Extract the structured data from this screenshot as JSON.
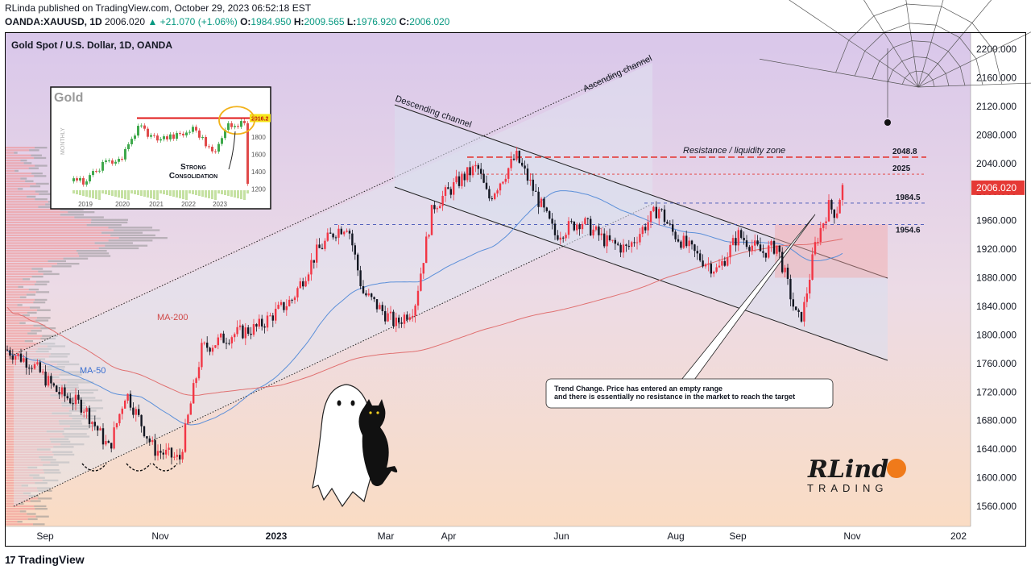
{
  "header": {
    "publish_line": "RLinda published on TradingView.com, October 29, 2023 06:52:18 EST",
    "symbol": "OANDA:XAUUSD, 1D",
    "last": "2006.020",
    "change": "▲ +21.070 (+1.06%)",
    "open_label": "O:",
    "open": "1984.950",
    "high_label": "H:",
    "high": "2009.565",
    "low_label": "L:",
    "low": "1976.920",
    "close_label": "C:",
    "close": "2006.020"
  },
  "footer": {
    "brand": "TradingView",
    "logo_glyph": "17"
  },
  "colors": {
    "up": "#089981",
    "candle_up": "#f23645",
    "candle_down": "#131722",
    "ma50": "#5b8fd9",
    "ma200": "#e07070",
    "resistance": "#e53935",
    "support": "#3f51b5"
  },
  "chart_data": {
    "type": "candlestick",
    "title": "Gold Spot / U.S. Dollar, 1D, OANDA",
    "ylim": [
      1540,
      2220
    ],
    "y_ticks": [
      1560,
      1600,
      1640,
      1680,
      1720,
      1760,
      1800,
      1840,
      1880,
      1920,
      1960,
      2000,
      2040,
      2080,
      2120,
      2160,
      2200
    ],
    "y_tick_labels": [
      "1560.000",
      "1600.000",
      "1640.000",
      "1680.000",
      "1720.000",
      "1760.000",
      "1800.000",
      "1840.000",
      "1880.000",
      "1920.000",
      "1960.000",
      "2000.000",
      "2040.000",
      "2080.000",
      "2120.000",
      "2160.000",
      "2200.000"
    ],
    "x_labels": [
      "Sep",
      "Nov",
      "2023",
      "Mar",
      "Apr",
      "Jun",
      "Aug",
      "Sep",
      "Nov",
      "202"
    ],
    "last_price_label": "2006.020",
    "series": [
      {
        "name": "MA-50"
      },
      {
        "name": "MA-200"
      }
    ],
    "levels": [
      {
        "value": 2048.8,
        "label": "2048.8",
        "style": "resistance"
      },
      {
        "value": 2025,
        "label": "2025",
        "style": "resistance"
      },
      {
        "value": 1984.5,
        "label": "1984.5",
        "style": "support"
      },
      {
        "value": 1954.6,
        "label": "1954.6",
        "style": "support"
      }
    ],
    "price_path": [
      [
        "2022-08-01",
        1780
      ],
      [
        "2022-08-15",
        1760
      ],
      [
        "2022-08-29",
        1720
      ],
      [
        "2022-09-12",
        1700
      ],
      [
        "2022-09-26",
        1640
      ],
      [
        "2022-10-05",
        1720
      ],
      [
        "2022-10-20",
        1640
      ],
      [
        "2022-11-03",
        1625
      ],
      [
        "2022-11-15",
        1780
      ],
      [
        "2022-12-01",
        1800
      ],
      [
        "2022-12-15",
        1810
      ],
      [
        "2023-01-03",
        1850
      ],
      [
        "2023-01-16",
        1915
      ],
      [
        "2023-01-26",
        1945
      ],
      [
        "2023-02-02",
        1955
      ],
      [
        "2023-02-10",
        1860
      ],
      [
        "2023-02-28",
        1815
      ],
      [
        "2023-03-10",
        1840
      ],
      [
        "2023-03-20",
        1980
      ],
      [
        "2023-04-05",
        2020
      ],
      [
        "2023-04-13",
        2035
      ],
      [
        "2023-04-19",
        1990
      ],
      [
        "2023-05-04",
        2050
      ],
      [
        "2023-05-12",
        2010
      ],
      [
        "2023-05-25",
        1940
      ],
      [
        "2023-06-08",
        1960
      ],
      [
        "2023-06-22",
        1930
      ],
      [
        "2023-07-03",
        1920
      ],
      [
        "2023-07-20",
        1978
      ],
      [
        "2023-07-27",
        1945
      ],
      [
        "2023-08-10",
        1910
      ],
      [
        "2023-08-21",
        1890
      ],
      [
        "2023-09-01",
        1940
      ],
      [
        "2023-09-14",
        1915
      ],
      [
        "2023-09-22",
        1925
      ],
      [
        "2023-10-03",
        1820
      ],
      [
        "2023-10-06",
        1830
      ],
      [
        "2023-10-13",
        1930
      ],
      [
        "2023-10-20",
        1980
      ],
      [
        "2023-10-24",
        1970
      ],
      [
        "2023-10-27",
        2006
      ]
    ],
    "annotations": {
      "ma50": "MA-50",
      "ma200": "MA-200",
      "ascending_channel": "Ascending channel",
      "descending_channel": "Descending channel",
      "resistance_zone": "Resistance / liquidity zone",
      "callout_line1": "Trend Change. Price has entered an empty range",
      "callout_line2": "and there is essentially no resistance in the market to reach the target"
    },
    "inset": {
      "title": "Gold",
      "vertical_label": "MONTHLY",
      "y_tick_labels": [
        "1200",
        "1400",
        "1600",
        "1800"
      ],
      "x_labels": [
        "2019",
        "2020",
        "2021",
        "2022",
        "2023"
      ],
      "level_label": "2016.2",
      "note_line1": "Strong",
      "note_line2": "Consolidation"
    }
  },
  "branding": {
    "logo_line1": "RLindo",
    "logo_line2": "TRADING"
  }
}
